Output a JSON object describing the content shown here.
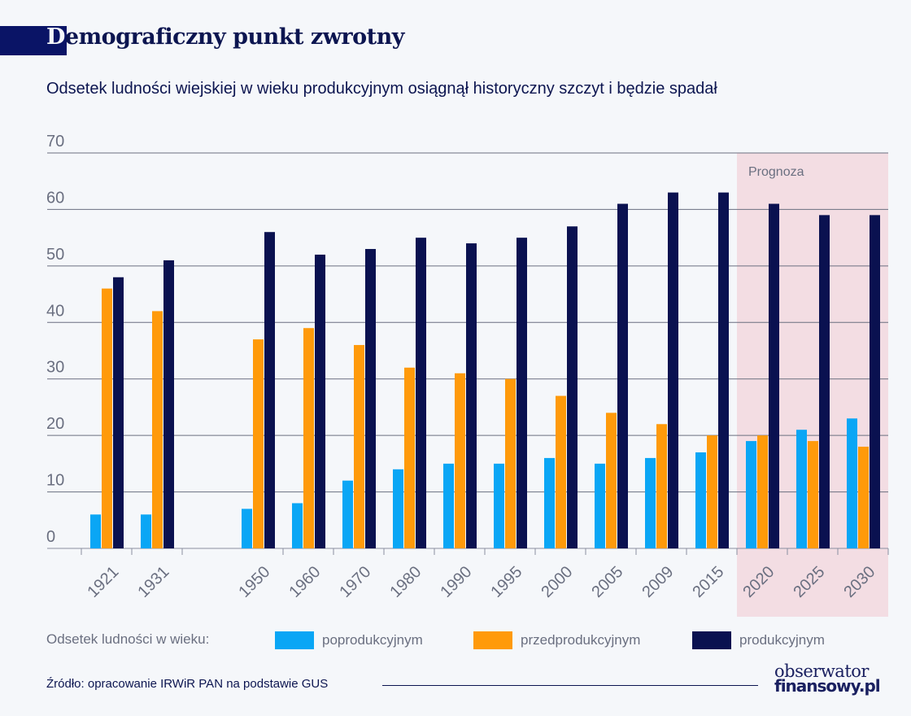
{
  "header": {
    "title_first": "D",
    "title_rest": "emograficzny punkt zwrotny",
    "subtitle": "Odsetek ludności wiejskiej w wieku produkcyjnym osiągnął historyczny szczyt i będzie spadał"
  },
  "chart_data": {
    "type": "bar",
    "categories": [
      "1921",
      "1931",
      "1950",
      "1960",
      "1970",
      "1980",
      "1990",
      "1995",
      "2000",
      "2005",
      "2009",
      "2015",
      "2020",
      "2025",
      "2030"
    ],
    "series": [
      {
        "name": "poprodukcyjnym",
        "color": "#0aa6f5",
        "values": [
          6,
          6,
          7,
          8,
          12,
          14,
          15,
          15,
          16,
          15,
          16,
          17,
          19,
          21,
          23
        ]
      },
      {
        "name": "przedprodukcyjnym",
        "color": "#ff9a0a",
        "values": [
          46,
          42,
          37,
          39,
          36,
          32,
          31,
          30,
          27,
          24,
          22,
          20,
          20,
          19,
          18
        ]
      },
      {
        "name": "produkcyjnym",
        "color": "#0a1150",
        "values": [
          48,
          51,
          56,
          52,
          53,
          55,
          54,
          55,
          57,
          61,
          63,
          63,
          61,
          59,
          59
        ]
      }
    ],
    "ylim": [
      0,
      70
    ],
    "yticks": [
      "0",
      "10",
      "20",
      "30",
      "40",
      "50",
      "60",
      "70"
    ],
    "grid": true,
    "forecast": {
      "label": "Prognoza",
      "from": "2020",
      "to": "2030",
      "color": "#f3dde3"
    },
    "legend_title": "Odsetek ludności w wieku:",
    "legend_placement": "bottom"
  },
  "footer": {
    "source": "Źródło: opracowanie IRWiR PAN na podstawie GUS",
    "logo_line1": "obserwator",
    "logo_line2": "finansowy.pl"
  }
}
